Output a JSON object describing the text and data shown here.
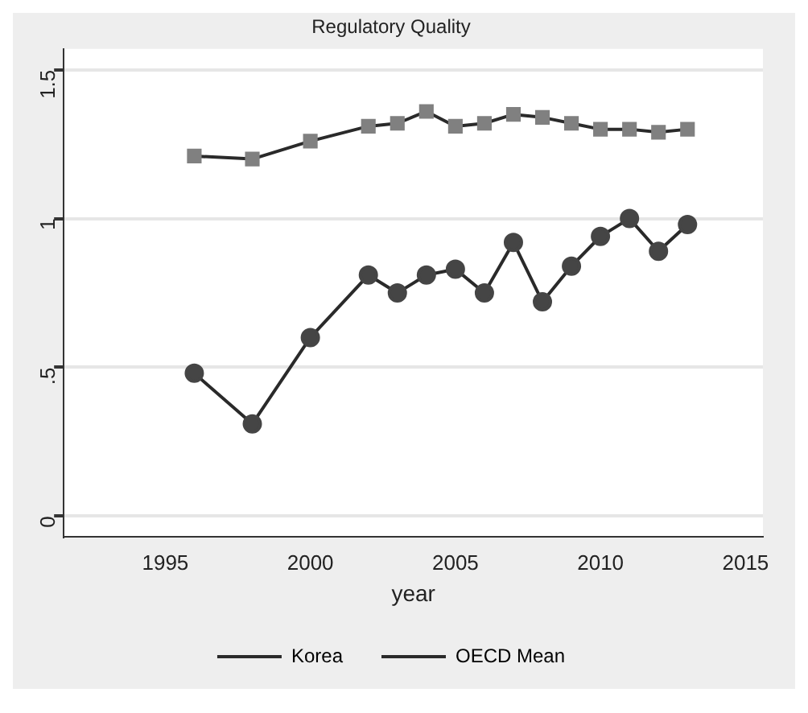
{
  "chart_data": {
    "type": "line",
    "title": "Regulatory Quality",
    "xlabel": "year",
    "x": [
      1996,
      1998,
      2000,
      2002,
      2003,
      2004,
      2005,
      2006,
      2007,
      2008,
      2009,
      2010,
      2011,
      2012,
      2013
    ],
    "series": [
      {
        "name": "Korea",
        "color": "#454545",
        "marker": "circle",
        "values": [
          0.48,
          0.31,
          0.6,
          0.81,
          0.75,
          0.81,
          0.83,
          0.75,
          0.92,
          0.72,
          0.84,
          0.94,
          1.0,
          0.89,
          0.98
        ]
      },
      {
        "name": "OECD Mean",
        "color": "#808080",
        "marker": "square",
        "values": [
          1.21,
          1.2,
          1.26,
          1.31,
          1.32,
          1.36,
          1.31,
          1.32,
          1.35,
          1.34,
          1.32,
          1.3,
          1.3,
          1.29,
          1.3
        ]
      }
    ],
    "xlim": [
      1991.5,
      2015.6
    ],
    "xticks": [
      1995,
      2000,
      2005,
      2010,
      2015
    ],
    "ylim": [
      -0.07,
      1.57
    ],
    "yticks": [
      0,
      {
        "value": 0.5,
        "label": ".5"
      },
      1,
      1.5
    ],
    "grid": "y",
    "legend": "bottom",
    "line_style": "solid"
  }
}
